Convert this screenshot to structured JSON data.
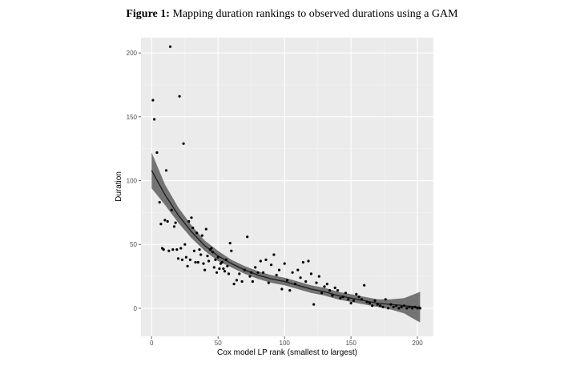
{
  "figure": {
    "label": "Figure 1:",
    "caption": "Mapping duration rankings to observed durations using a GAM"
  },
  "chart_data": {
    "type": "scatter",
    "xlabel": "Cox model LP rank (smallest to largest)",
    "ylabel": "Duration",
    "xlim": [
      -8,
      212
    ],
    "ylim": [
      -22,
      212
    ],
    "xticks": [
      0,
      50,
      100,
      150,
      200
    ],
    "yticks": [
      0,
      50,
      100,
      150,
      200
    ],
    "grid": true,
    "colors": {
      "panel": "#ebebeb",
      "grid_major": "#ffffff",
      "grid_minor": "#f4f4f4",
      "points": "#000000",
      "smooth_ribbon": "#666666",
      "smooth_line": "#1a1a1a"
    },
    "series": [
      {
        "type": "scatter",
        "x": [
          1,
          2,
          4,
          6,
          7,
          8,
          9,
          10,
          11,
          12,
          13,
          14,
          15,
          16,
          17,
          18,
          19,
          20,
          21,
          22,
          23,
          24,
          25,
          26,
          27,
          28,
          29,
          30,
          31,
          32,
          33,
          34,
          35,
          36,
          37,
          38,
          39,
          40,
          41,
          42,
          43,
          44,
          45,
          46,
          47,
          48,
          49,
          50,
          51,
          52,
          53,
          54,
          55,
          56,
          57,
          58,
          59,
          60,
          62,
          64,
          66,
          68,
          70,
          72,
          74,
          75,
          76,
          78,
          80,
          82,
          84,
          86,
          88,
          90,
          92,
          94,
          96,
          98,
          100,
          102,
          104,
          106,
          108,
          110,
          112,
          114,
          116,
          118,
          120,
          122,
          124,
          126,
          128,
          130,
          132,
          134,
          136,
          138,
          140,
          142,
          144,
          146,
          148,
          150,
          152,
          154,
          156,
          158,
          160,
          162,
          164,
          166,
          168,
          170,
          172,
          174,
          176,
          178,
          180,
          182,
          184,
          186,
          188,
          190,
          192,
          194,
          196,
          198,
          200,
          202
        ],
        "y": [
          163,
          148,
          122,
          83,
          66,
          47,
          46,
          69,
          108,
          68,
          45,
          205,
          77,
          46,
          64,
          67,
          46,
          39,
          166,
          47,
          38,
          129,
          50,
          40,
          33,
          68,
          38,
          71,
          63,
          45,
          36,
          59,
          36,
          46,
          42,
          57,
          35,
          30,
          62,
          41,
          37,
          46,
          47,
          44,
          32,
          38,
          28,
          40,
          31,
          35,
          36,
          31,
          29,
          38,
          33,
          27,
          51,
          45,
          19,
          22,
          27,
          21,
          30,
          56,
          25,
          28,
          21,
          32,
          28,
          37,
          28,
          38,
          20,
          34,
          42,
          26,
          30,
          15,
          35,
          22,
          14,
          28,
          19,
          30,
          24,
          36,
          21,
          37,
          27,
          3,
          20,
          25,
          12,
          17,
          19,
          14,
          10,
          16,
          14,
          8,
          9,
          12,
          7,
          4,
          6,
          11,
          9,
          7,
          18,
          5,
          4,
          2,
          6,
          3,
          2,
          1,
          7,
          0,
          3,
          1,
          2,
          0,
          1,
          2,
          0,
          1,
          0,
          1,
          0,
          0
        ]
      },
      {
        "type": "smooth",
        "name": "",
        "x": [
          0,
          10,
          20,
          30,
          40,
          50,
          60,
          70,
          80,
          90,
          100,
          110,
          120,
          130,
          140,
          150,
          160,
          170,
          180,
          190,
          200,
          202
        ],
        "y": [
          108,
          89,
          73,
          60,
          49,
          41,
          35,
          30,
          26,
          23,
          21,
          18,
          15,
          13,
          10,
          8,
          6,
          4,
          3,
          2,
          1,
          1
        ],
        "ribbon_half_width": [
          14,
          8,
          6,
          5,
          4,
          4,
          3,
          3,
          3,
          3,
          3,
          3,
          3,
          3,
          3,
          3,
          3,
          3,
          4,
          6,
          11,
          12
        ]
      }
    ]
  }
}
